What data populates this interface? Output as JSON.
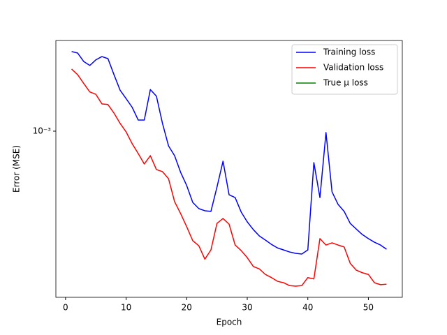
{
  "chart_data": {
    "type": "line",
    "xlabel": "Epoch",
    "ylabel": "Error (MSE)",
    "yscale": "log",
    "legend": "upper right",
    "xlim": [
      -1.6,
      55.6
    ],
    "xticks": [
      0,
      10,
      20,
      30,
      40,
      50
    ],
    "ylim": [
      0.000161,
      0.00271
    ],
    "yticks": [
      {
        "value": 0.001,
        "label": "10⁻³"
      }
    ],
    "x": [
      1,
      2,
      3,
      4,
      5,
      6,
      7,
      8,
      9,
      10,
      11,
      12,
      13,
      14,
      15,
      16,
      17,
      18,
      19,
      20,
      21,
      22,
      23,
      24,
      25,
      26,
      27,
      28,
      29,
      30,
      31,
      32,
      33,
      34,
      35,
      36,
      37,
      38,
      39,
      40,
      41,
      42,
      43,
      44,
      45,
      46,
      47,
      48,
      49,
      50,
      51,
      52,
      53
    ],
    "series": [
      {
        "name": "Training loss",
        "color": "#0000ff",
        "values": [
          0.0024,
          0.00236,
          0.00215,
          0.00206,
          0.00219,
          0.00227,
          0.00222,
          0.00186,
          0.00157,
          0.00143,
          0.0013,
          0.00113,
          0.00113,
          0.00158,
          0.00147,
          0.00109,
          0.000851,
          0.000764,
          0.000636,
          0.00055,
          0.000457,
          0.000427,
          0.000417,
          0.000414,
          0.000541,
          0.000719,
          0.000497,
          0.000482,
          0.000411,
          0.000369,
          0.000339,
          0.000316,
          0.000302,
          0.000288,
          0.000277,
          0.000271,
          0.000265,
          0.000261,
          0.000259,
          0.000271,
          0.000708,
          0.000482,
          0.000985,
          0.000513,
          0.000447,
          0.000414,
          0.000363,
          0.000341,
          0.000321,
          0.000307,
          0.000295,
          0.000286,
          0.000273
        ]
      },
      {
        "name": "Validation loss",
        "color": "#ff0000",
        "values": [
          0.00198,
          0.00186,
          0.00169,
          0.00154,
          0.0015,
          0.00135,
          0.00134,
          0.00122,
          0.00109,
          0.000992,
          0.000871,
          0.000782,
          0.000697,
          0.000764,
          0.000656,
          0.000641,
          0.000593,
          0.000461,
          0.000404,
          0.00035,
          0.0003,
          0.000284,
          0.000245,
          0.000271,
          0.000363,
          0.000383,
          0.00036,
          0.000286,
          0.000269,
          0.000249,
          0.000226,
          0.00022,
          0.000207,
          0.0002,
          0.000192,
          0.000189,
          0.000183,
          0.000182,
          0.000183,
          0.0002,
          0.000197,
          0.000307,
          0.000286,
          0.000293,
          0.000286,
          0.00028,
          0.000234,
          0.000217,
          0.000211,
          0.000207,
          0.000189,
          0.000185,
          0.000186
        ]
      },
      {
        "name": "True μ loss",
        "color": "#008000",
        "values": [
          null,
          null,
          null,
          null,
          null,
          null,
          null,
          null,
          null,
          null,
          null,
          null,
          null,
          null,
          null,
          null,
          null,
          null,
          null,
          null,
          null,
          null,
          null,
          null,
          null,
          null,
          null,
          null,
          null,
          null,
          null,
          null,
          null,
          null,
          null,
          null,
          null,
          null,
          null,
          null,
          null,
          null,
          null,
          null,
          null,
          null,
          null,
          null,
          null,
          null,
          null,
          null,
          null
        ]
      }
    ]
  }
}
